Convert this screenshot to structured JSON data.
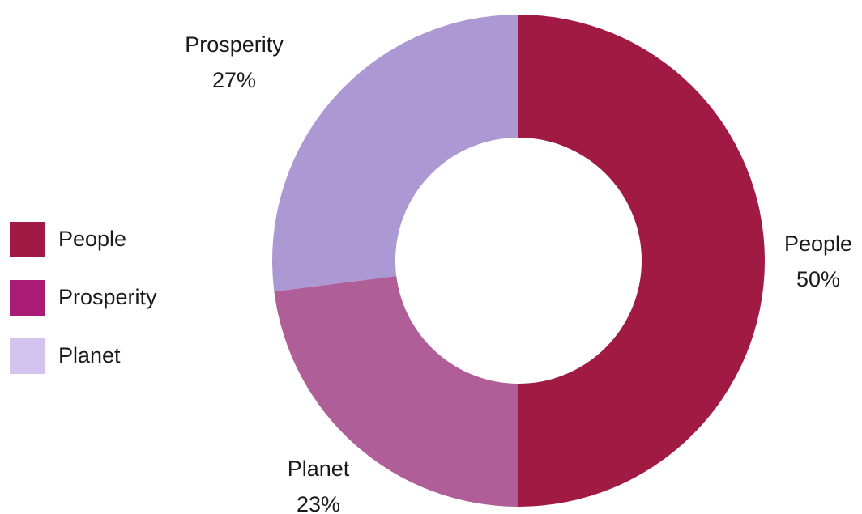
{
  "chart_data": {
    "type": "pie",
    "donut": true,
    "categories": [
      "People",
      "Prosperity",
      "Planet"
    ],
    "values": [
      50,
      27,
      23
    ],
    "value_labels": [
      "50%",
      "27%",
      "23%"
    ],
    "slice_colors": [
      "#a01a44",
      "#ac98d3",
      "#b05e97"
    ],
    "legend": {
      "placement": "left",
      "entries": [
        {
          "label": "People",
          "color": "#a01a44"
        },
        {
          "label": "Prosperity",
          "color": "#a81c76"
        },
        {
          "label": "Planet",
          "color": "#d2c4ee"
        }
      ]
    }
  }
}
